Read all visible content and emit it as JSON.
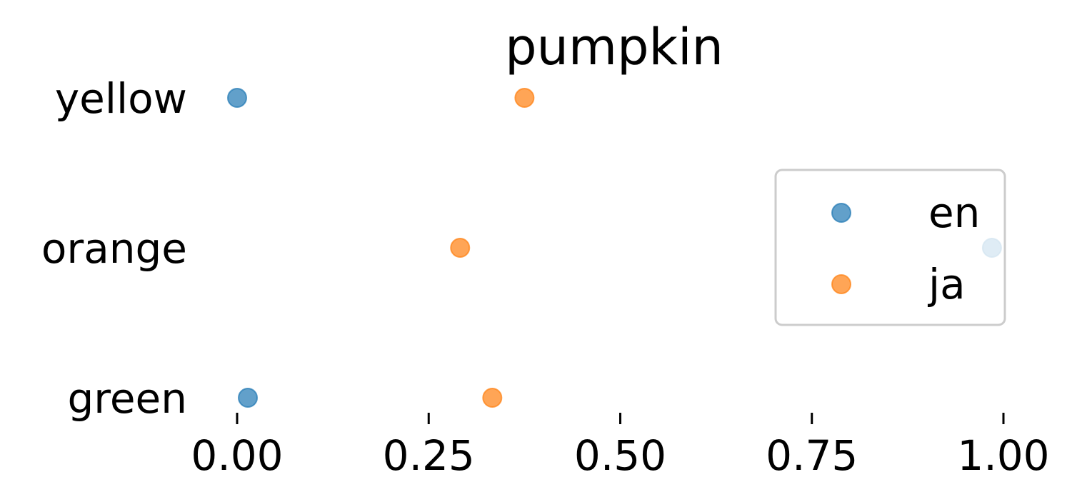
{
  "chart_data": {
    "type": "scatter",
    "title": "pumpkin",
    "xlabel": "",
    "ylabel": "",
    "xlim": [
      0,
      1
    ],
    "xticks": [
      0,
      0.25,
      0.5,
      0.75,
      1
    ],
    "xtick_labels": [
      "0.00",
      "0.25",
      "0.50",
      "0.75",
      "1.00"
    ],
    "categories": [
      "yellow",
      "orange",
      "green"
    ],
    "series": [
      {
        "name": "en",
        "color": "#1f77b4",
        "values": [
          0.0,
          0.985,
          0.014
        ]
      },
      {
        "name": "ja",
        "color": "#ff7f0e",
        "values": [
          0.375,
          0.291,
          0.333
        ]
      }
    ],
    "marker_alpha": 0.7,
    "grid": false,
    "legend": {
      "position": "right"
    }
  }
}
